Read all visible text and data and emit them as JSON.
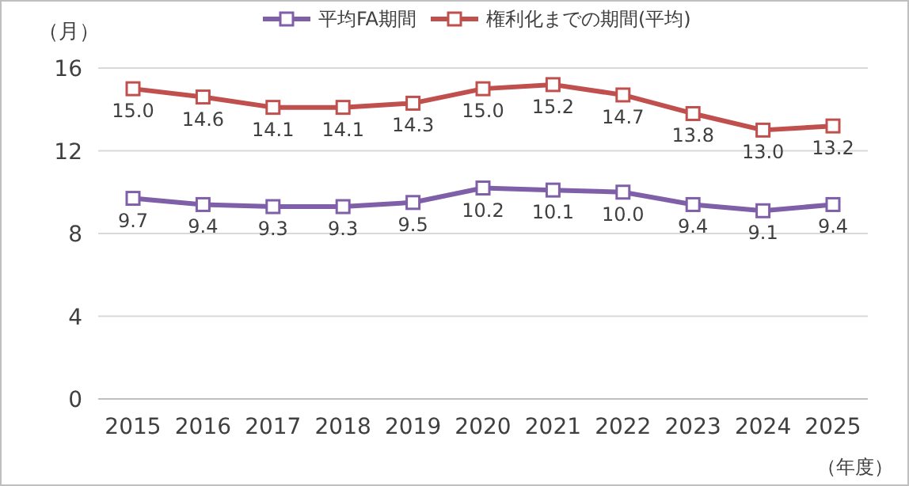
{
  "chart_data": {
    "type": "line",
    "ylabel": "（月）",
    "xlabel": "（年度）",
    "categories": [
      "2015",
      "2016",
      "2017",
      "2018",
      "2019",
      "2020",
      "2021",
      "2022",
      "2023",
      "2024",
      "2025"
    ],
    "series": [
      {
        "name": "平均FA期間",
        "color": "#7e5fa8",
        "values": [
          9.7,
          9.4,
          9.3,
          9.3,
          9.5,
          10.2,
          10.1,
          10.0,
          9.4,
          9.1,
          9.4
        ],
        "value_labels": [
          "9.7",
          "9.4",
          "9.3",
          "9.3",
          "9.5",
          "10.2",
          "10.1",
          "10.0",
          "9.4",
          "9.1",
          "9.4"
        ]
      },
      {
        "name": "権利化までの期間(平均)",
        "color": "#c0504d",
        "values": [
          15.0,
          14.6,
          14.1,
          14.1,
          14.3,
          15.0,
          15.2,
          14.7,
          13.8,
          13.0,
          13.2
        ],
        "value_labels": [
          "15.0",
          "14.6",
          "14.1",
          "14.1",
          "14.3",
          "15.0",
          "15.2",
          "14.7",
          "13.8",
          "13.0",
          "13.2"
        ]
      }
    ],
    "ylim": [
      0,
      16
    ],
    "yticks": [
      0,
      4,
      8,
      12,
      16
    ],
    "grid": "y",
    "legend": "top",
    "marker": "square",
    "line_style": "solid"
  }
}
